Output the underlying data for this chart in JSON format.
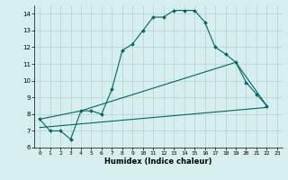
{
  "xlabel": "Humidex (Indice chaleur)",
  "background_color": "#d6eeee",
  "grid_color": "#b8d0d0",
  "line_color": "#006666",
  "xlim": [
    -0.5,
    23.5
  ],
  "ylim": [
    6,
    14.5
  ],
  "yticks": [
    6,
    7,
    8,
    9,
    10,
    11,
    12,
    13,
    14
  ],
  "xticks": [
    0,
    1,
    2,
    3,
    4,
    5,
    6,
    7,
    8,
    9,
    10,
    11,
    12,
    13,
    14,
    15,
    16,
    17,
    18,
    19,
    20,
    21,
    22,
    23
  ],
  "line1_x": [
    0,
    1,
    2,
    3,
    4,
    5,
    6,
    7,
    8,
    9,
    10,
    11,
    12,
    13,
    14,
    15,
    16,
    17,
    18,
    19,
    20,
    21,
    22
  ],
  "line1_y": [
    7.7,
    7.0,
    7.0,
    6.5,
    8.2,
    8.2,
    8.0,
    9.5,
    11.8,
    12.2,
    13.0,
    13.8,
    13.8,
    14.2,
    14.2,
    14.2,
    13.5,
    12.0,
    11.6,
    11.1,
    9.9,
    9.2,
    8.5
  ],
  "line2_x": [
    0,
    4,
    19,
    22
  ],
  "line2_y": [
    7.7,
    8.2,
    11.1,
    8.5
  ],
  "line3_x": [
    0,
    22
  ],
  "line3_y": [
    7.2,
    8.4
  ]
}
